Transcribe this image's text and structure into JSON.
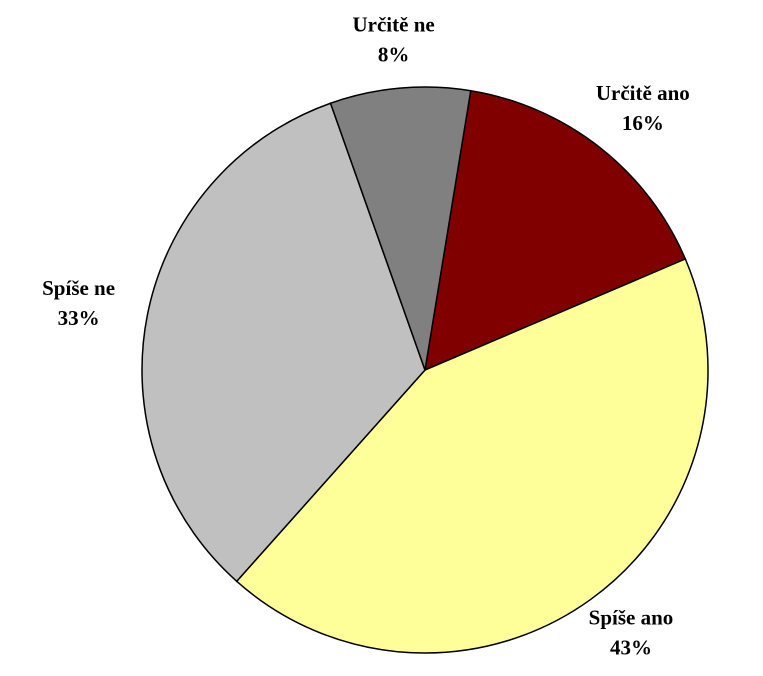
{
  "chart_data": {
    "type": "pie",
    "categories": [
      "Určitě ano",
      "Spíše ano",
      "Spíše ne",
      "Určitě ne"
    ],
    "values": [
      16,
      43,
      33,
      8
    ],
    "value_labels": [
      "16%",
      "43%",
      "33%",
      "8%"
    ],
    "colors": [
      "#800000",
      "#ffff99",
      "#c0c0c0",
      "#808080"
    ]
  }
}
